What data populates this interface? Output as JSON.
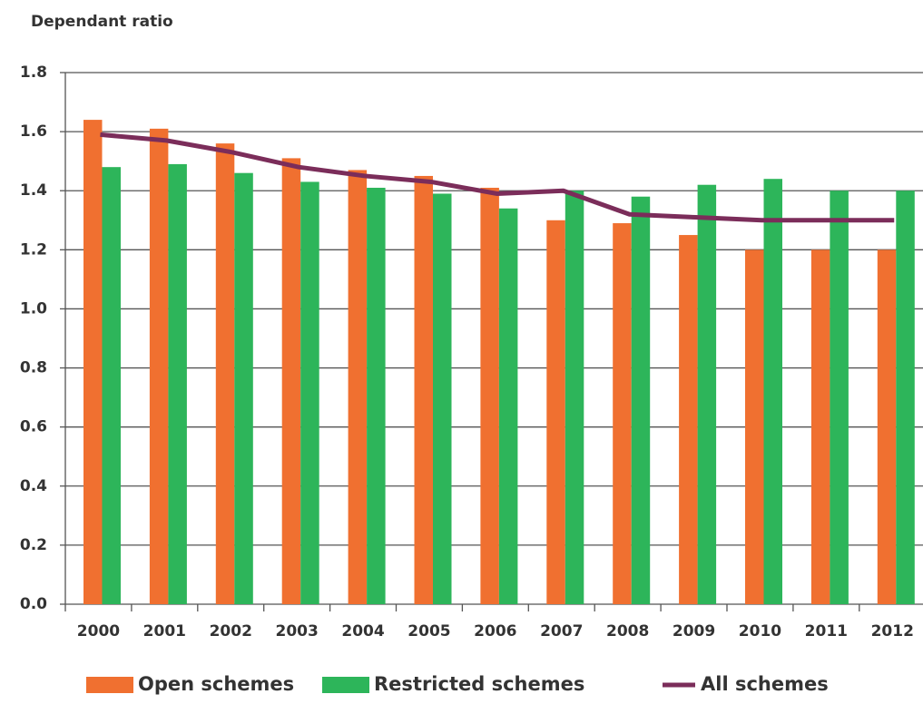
{
  "chart_data": {
    "type": "bar",
    "title": "Dependant ratio",
    "categories": [
      "2000",
      "2001",
      "2002",
      "2003",
      "2004",
      "2005",
      "2006",
      "2007",
      "2008",
      "2009",
      "2010",
      "2011",
      "2012"
    ],
    "series": [
      {
        "name": "Open schemes",
        "color": "#f07030",
        "values": [
          1.64,
          1.61,
          1.56,
          1.51,
          1.47,
          1.45,
          1.41,
          1.3,
          1.29,
          1.25,
          1.2,
          1.2,
          1.2
        ]
      },
      {
        "name": "Restricted schemes",
        "color": "#2db55a",
        "values": [
          1.48,
          1.49,
          1.46,
          1.43,
          1.41,
          1.39,
          1.34,
          1.4,
          1.38,
          1.42,
          1.44,
          1.4,
          1.4
        ]
      },
      {
        "name": "All schemes",
        "type": "line",
        "color": "#7b2d5a",
        "values": [
          1.59,
          1.57,
          1.53,
          1.48,
          1.45,
          1.43,
          1.39,
          1.4,
          1.32,
          1.31,
          1.3,
          1.3,
          1.3
        ]
      }
    ],
    "ylim": [
      0,
      1.8
    ],
    "yticks": [
      {
        "value": 0,
        "label": "0.0"
      },
      0.2,
      0.4,
      0.6,
      0.8,
      {
        "value": 1,
        "label": "1.0"
      },
      1.2,
      1.4,
      1.6,
      1.8
    ],
    "grid": true
  }
}
